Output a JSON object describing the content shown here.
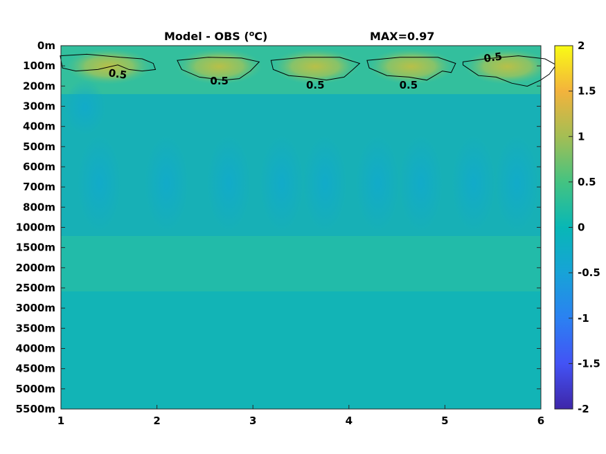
{
  "chart_data": {
    "type": "heatmap",
    "title": "Model - OBS (oC)",
    "title_left": "Model - OBS (",
    "title_sup": "o",
    "title_right": "C)",
    "title_max": "MAX=0.97",
    "x_ticks": [
      "1",
      "2",
      "3",
      "4",
      "5",
      "6"
    ],
    "xlim": [
      1,
      6
    ],
    "y_ticks": [
      "0m",
      "100m",
      "200m",
      "300m",
      "400m",
      "500m",
      "600m",
      "700m",
      "800m",
      "1000m",
      "1500m",
      "2000m",
      "2500m",
      "3000m",
      "3500m",
      "4000m",
      "4500m",
      "5000m",
      "5500m"
    ],
    "colorbar_ticks": [
      "2",
      "1.5",
      "1",
      "0.5",
      "0",
      "-0.5",
      "-1",
      "-1.5",
      "-2"
    ],
    "clim": [
      -2,
      2
    ],
    "colormap": "parula",
    "contour_level": 0.5,
    "contour_labels": [
      "0.5",
      "0.5",
      "0.5",
      "0.5",
      "0.5"
    ],
    "warm_anomaly_centers_x": [
      1.5,
      2.65,
      3.65,
      4.65,
      5.65
    ],
    "warm_anomaly_depth": "100m",
    "background_value": 0.15
  }
}
